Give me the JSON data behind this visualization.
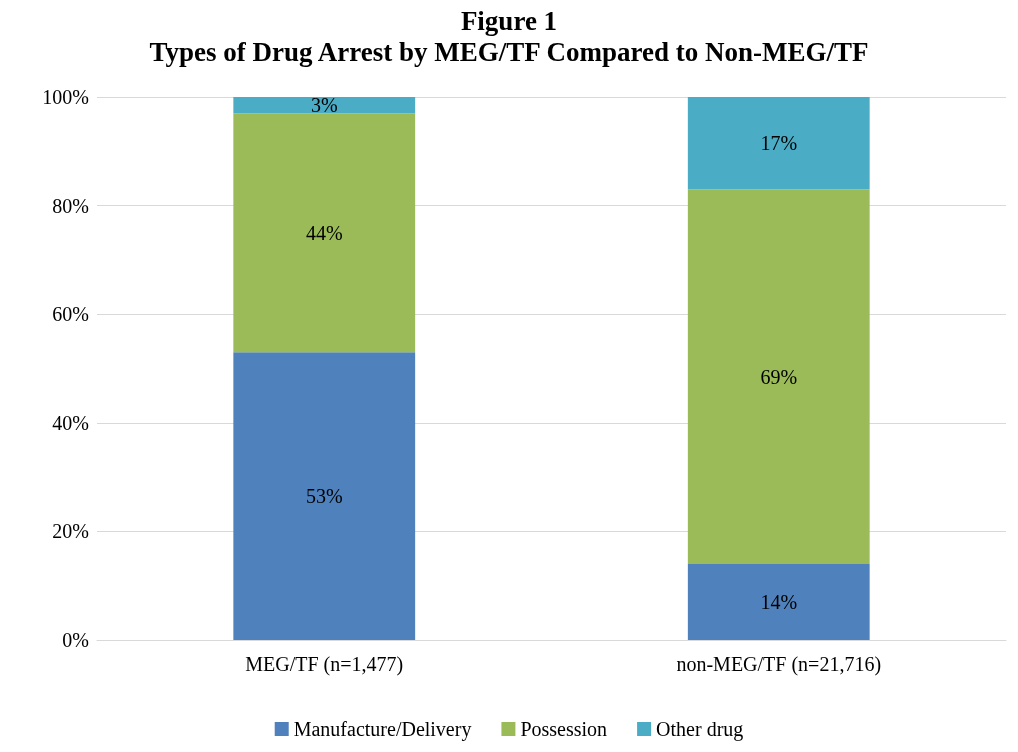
{
  "chart_data": {
    "type": "bar",
    "title": "Figure 1",
    "subtitle": "Types of Drug Arrest by MEG/TF Compared to Non-MEG/TF",
    "categories": [
      "MEG/TF (n=1,477)",
      "non-MEG/TF (n=21,716)"
    ],
    "series": [
      {
        "name": "Manufacture/Delivery",
        "color": "#4f81bd",
        "values": [
          53,
          14
        ],
        "value_labels": [
          "53%",
          "14%"
        ]
      },
      {
        "name": "Possession",
        "color": "#9bbb59",
        "values": [
          44,
          69
        ],
        "value_labels": [
          "44%",
          "69%"
        ]
      },
      {
        "name": "Other drug",
        "color": "#4bacc6",
        "values": [
          3,
          17
        ],
        "value_labels": [
          "3%",
          "17%"
        ]
      }
    ],
    "stacked": true,
    "ylim": [
      0,
      100
    ],
    "yticks": [
      {
        "value": 0,
        "label": "0%"
      },
      {
        "value": 20,
        "label": "20%"
      },
      {
        "value": 40,
        "label": "40%"
      },
      {
        "value": 60,
        "label": "60%"
      },
      {
        "value": 80,
        "label": "80%"
      },
      {
        "value": 100,
        "label": "100%"
      }
    ],
    "grid": "y",
    "legend": "bottom"
  }
}
